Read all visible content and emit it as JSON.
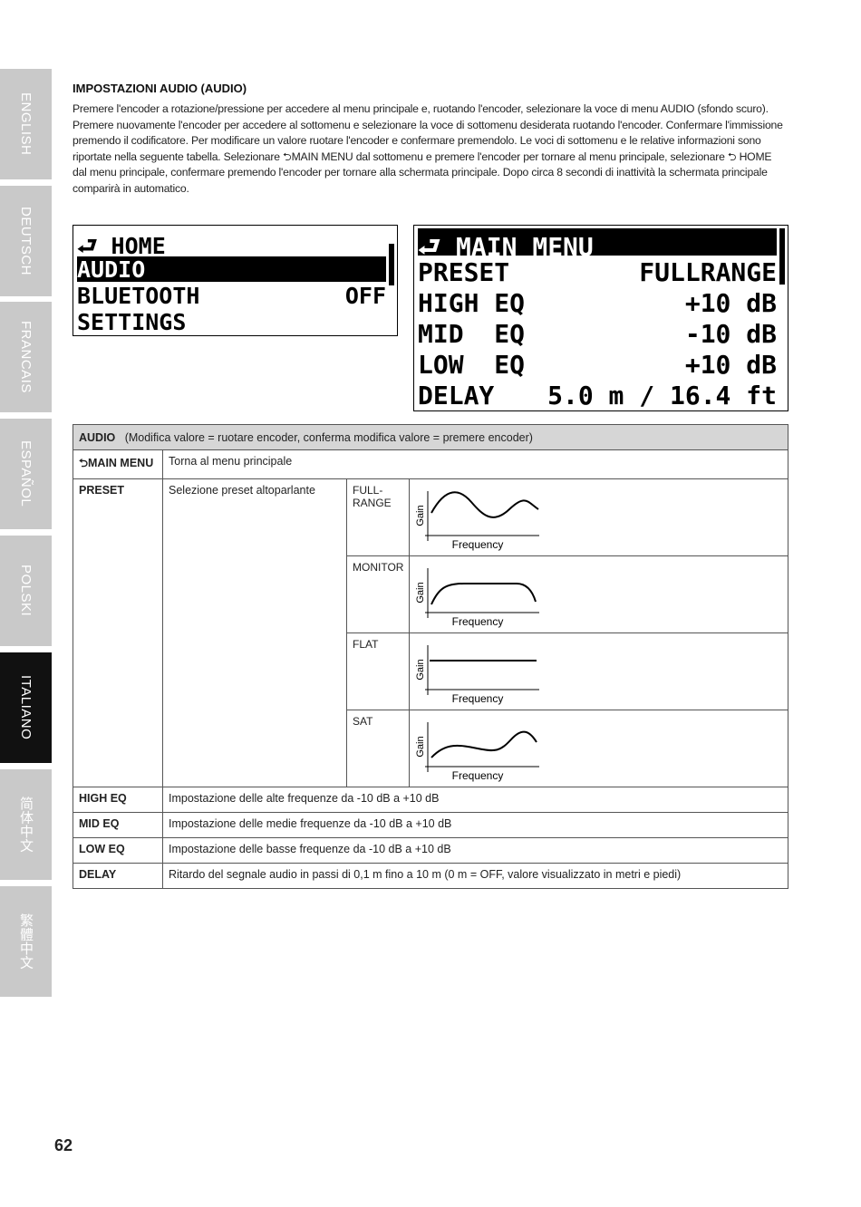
{
  "sidebar": {
    "tabs": [
      "ENGLISH",
      "DEUTSCH",
      "FRANCAIS",
      "ESPAÑOL",
      "POLSKI",
      "ITALIANO",
      "简体中文",
      "繁體中文"
    ],
    "active": "ITALIANO"
  },
  "section": {
    "title": "IMPOSTAZIONI AUDIO (AUDIO)",
    "text": "Premere l'encoder a rotazione/pressione per accedere al menu principale e, ruotando l'encoder, selezionare la voce di menu AUDIO (sfondo scuro). Premere nuovamente l'encoder per accedere al sottomenu e selezionare la voce di sottomenu desiderata ruotando l'encoder. Confermare l'immissione premendo il codificatore. Per modificare un valore ruotare l'encoder e confermare premendolo. Le voci di sottomenu e le relative informazioni sono riportate nella seguente tabella. Selezionare ⮌MAIN MENU dal sottomenu e premere l'encoder per tornare al menu principale, selezionare ⮌ HOME dal menu principale, confermare premendo l'encoder per tornare alla schermata principale. Dopo circa 8 secondi di inattività la schermata principale comparirà in automatico."
  },
  "lcd_main": {
    "rows": [
      {
        "label": "⮐ HOME",
        "value": ""
      },
      {
        "label": "AUDIO",
        "value": "",
        "selected": true
      },
      {
        "label": "BLUETOOTH",
        "value": "OFF"
      },
      {
        "label": "SETTINGS",
        "value": ""
      }
    ]
  },
  "lcd_audio": {
    "rows": [
      {
        "label": "⮐ MAIN MENU",
        "value": "",
        "selected": true
      },
      {
        "label": "PRESET",
        "value": "FULLRANGE"
      },
      {
        "label": "HIGH EQ",
        "value": "+10 dB"
      },
      {
        "label": "MID  EQ",
        "value": "-10 dB"
      },
      {
        "label": "LOW  EQ",
        "value": "+10 dB"
      },
      {
        "label": "DELAY",
        "value": "5.0 m / 16.4 ft"
      }
    ]
  },
  "table": {
    "header_key": "AUDIO",
    "header_text": "(Modifica valore = ruotare encoder, conferma modifica valore = premere encoder)",
    "main_menu": {
      "key": "⮌MAIN MENU",
      "text": "Torna al menu principale"
    },
    "preset": {
      "key": "PRESET",
      "text": "Selezione preset altoparlante",
      "options": [
        "FULL-\nRANGE",
        "MONITOR",
        "FLAT",
        "SAT"
      ],
      "graph_ylabel": "Gain",
      "graph_xlabel": "Frequency"
    },
    "rows": [
      {
        "key": "HIGH EQ",
        "text": "Impostazione delle alte frequenze da -10 dB a +10 dB"
      },
      {
        "key": "MID EQ",
        "text": "Impostazione delle medie frequenze da -10 dB a +10 dB"
      },
      {
        "key": "LOW EQ",
        "text": "Impostazione delle basse frequenze da -10 dB a +10 dB"
      },
      {
        "key": "DELAY",
        "text": "Ritardo del segnale audio in passi di 0,1 m fino a 10 m (0 m = OFF, valore visualizzato in metri e piedi)"
      }
    ]
  },
  "page_number": "62"
}
